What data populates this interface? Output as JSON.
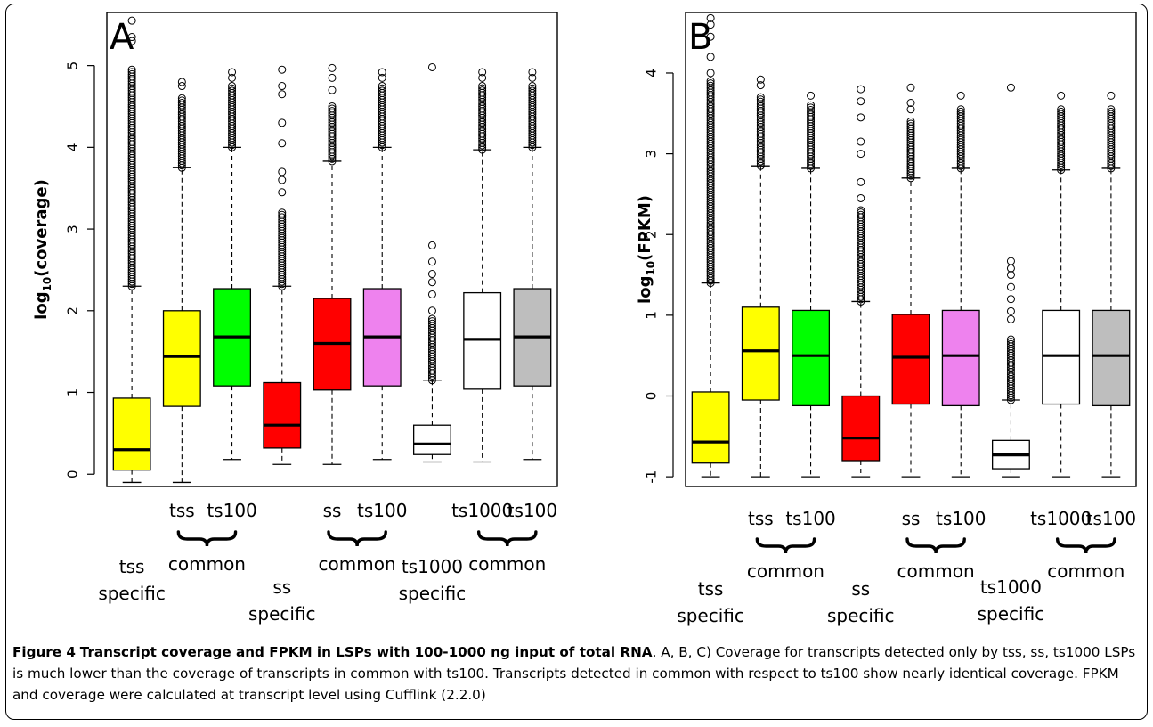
{
  "figure": {
    "caption_label": "Figure 4",
    "caption_title": "Transcript coverage and FPKM in LSPs with 100-1000 ng input of total RNA",
    "caption_sep": ". ",
    "caption_body": "A, B, C) Coverage for transcripts detected only by tss, ss, ts1000 LSPs is much lower than the coverage of transcripts in common with ts100. Transcripts detected in common with respect to ts100 show nearly identical coverage. FPKM and coverage were calculated at transcript level using Cufflink (2.2.0)"
  },
  "chart_data": [
    {
      "type": "box",
      "panel_label": "A",
      "ylabel_main": "log",
      "ylabel_sub": "10",
      "ylabel_tail": "(coverage)",
      "ylim": [
        -0.15,
        5.65
      ],
      "yticks": [
        0,
        1,
        2,
        3,
        4,
        5
      ],
      "ytick_labels": [
        "0",
        "1",
        "2",
        "3",
        "4",
        "5"
      ],
      "series": [
        {
          "color": "#ffff00",
          "whisker_low": -0.1,
          "q1": 0.05,
          "median": 0.3,
          "q3": 0.93,
          "whisker_high": 2.3,
          "outlier_range": [
            2.3,
            4.95
          ],
          "outliers": [
            5.35,
            5.3,
            5.55
          ]
        },
        {
          "color": "#ffff00",
          "whisker_low": -0.1,
          "q1": 0.83,
          "median": 1.44,
          "q3": 2.0,
          "whisker_high": 3.75,
          "outlier_range": [
            3.75,
            4.6
          ],
          "outliers": [
            4.75,
            4.8
          ]
        },
        {
          "color": "#00ff00",
          "whisker_low": 0.18,
          "q1": 1.08,
          "median": 1.68,
          "q3": 2.27,
          "whisker_high": 4.0,
          "outlier_range": [
            4.0,
            4.75
          ],
          "outliers": [
            4.85,
            4.92
          ]
        },
        {
          "color": "#ff0000",
          "whisker_low": 0.12,
          "q1": 0.32,
          "median": 0.6,
          "q3": 1.12,
          "whisker_high": 2.3,
          "outlier_range": [
            2.3,
            3.2
          ],
          "outliers": [
            3.45,
            3.6,
            3.7,
            4.05,
            4.3,
            4.65,
            4.75,
            4.95
          ]
        },
        {
          "color": "#ff0000",
          "whisker_low": 0.12,
          "q1": 1.03,
          "median": 1.6,
          "q3": 2.15,
          "whisker_high": 3.83,
          "outlier_range": [
            3.83,
            4.5
          ],
          "outliers": [
            4.7,
            4.85,
            4.97
          ]
        },
        {
          "color": "#ee82ee",
          "whisker_low": 0.18,
          "q1": 1.08,
          "median": 1.68,
          "q3": 2.27,
          "whisker_high": 4.0,
          "outlier_range": [
            4.0,
            4.75
          ],
          "outliers": [
            4.85,
            4.92
          ]
        },
        {
          "color": "#ffffff",
          "whisker_low": 0.15,
          "q1": 0.24,
          "median": 0.37,
          "q3": 0.6,
          "whisker_high": 1.15,
          "outlier_range": [
            1.15,
            1.9
          ],
          "outliers": [
            2.0,
            2.2,
            2.35,
            2.45,
            2.6,
            2.8,
            4.98
          ]
        },
        {
          "color": "#ffffff",
          "whisker_low": 0.15,
          "q1": 1.04,
          "median": 1.65,
          "q3": 2.22,
          "whisker_high": 3.97,
          "outlier_range": [
            3.97,
            4.75
          ],
          "outliers": [
            4.85,
            4.92
          ]
        },
        {
          "color": "#bebebe",
          "whisker_low": 0.18,
          "q1": 1.08,
          "median": 1.68,
          "q3": 2.27,
          "whisker_high": 4.0,
          "outlier_range": [
            4.0,
            4.75
          ],
          "outliers": [
            4.85,
            4.92
          ]
        }
      ],
      "x_labels": [
        {
          "text": "tss",
          "box": 1,
          "row": 0
        },
        {
          "text": "ts100",
          "box": 2,
          "row": 0
        },
        {
          "text": "ss",
          "box": 4,
          "row": 0
        },
        {
          "text": "ts100",
          "box": 5,
          "row": 0
        },
        {
          "text": "ts1000",
          "box": 7,
          "row": 0
        },
        {
          "text": "ts100",
          "box": 8,
          "row": 0
        }
      ],
      "groups": [
        {
          "label": "common",
          "from_box": 1,
          "to_box": 2
        },
        {
          "label": "common",
          "from_box": 4,
          "to_box": 5
        },
        {
          "label": "common",
          "from_box": 7,
          "to_box": 8
        }
      ],
      "specific_labels": [
        {
          "line1": "tss",
          "line2": "specific",
          "box": 0
        },
        {
          "line1": "ss",
          "line2": "specific",
          "box": 3
        },
        {
          "line1": "ts1000",
          "line2": "specific",
          "box": 6
        }
      ]
    },
    {
      "type": "box",
      "panel_label": "B",
      "ylabel_main": "log",
      "ylabel_sub": "10",
      "ylabel_tail": "(FPKM)",
      "ylim": [
        -1.12,
        4.75
      ],
      "yticks": [
        -1,
        0,
        1,
        2,
        3,
        4
      ],
      "ytick_labels": [
        "-1",
        "0",
        "1",
        "2",
        "3",
        "4"
      ],
      "series": [
        {
          "color": "#ffff00",
          "whisker_low": -1.0,
          "q1": -0.83,
          "median": -0.57,
          "q3": 0.05,
          "whisker_high": 1.4,
          "outlier_range": [
            1.4,
            3.9
          ],
          "outliers": [
            4.0,
            4.2,
            4.45,
            4.6,
            4.68
          ]
        },
        {
          "color": "#ffff00",
          "whisker_low": -1.0,
          "q1": -0.05,
          "median": 0.56,
          "q3": 1.1,
          "whisker_high": 2.85,
          "outlier_range": [
            2.85,
            3.7
          ],
          "outliers": [
            3.85,
            3.92
          ]
        },
        {
          "color": "#00ff00",
          "whisker_low": -1.0,
          "q1": -0.12,
          "median": 0.5,
          "q3": 1.06,
          "whisker_high": 2.82,
          "outlier_range": [
            2.82,
            3.6
          ],
          "outliers": [
            3.72
          ]
        },
        {
          "color": "#ff0000",
          "whisker_low": -1.0,
          "q1": -0.8,
          "median": -0.52,
          "q3": 0.0,
          "whisker_high": 1.17,
          "outlier_range": [
            1.17,
            2.3
          ],
          "outliers": [
            2.45,
            2.65,
            3.0,
            3.15,
            3.45,
            3.65,
            3.8
          ]
        },
        {
          "color": "#ff0000",
          "whisker_low": -1.0,
          "q1": -0.1,
          "median": 0.48,
          "q3": 1.01,
          "whisker_high": 2.7,
          "outlier_range": [
            2.7,
            3.4
          ],
          "outliers": [
            3.55,
            3.63,
            3.82
          ]
        },
        {
          "color": "#ee82ee",
          "whisker_low": -1.0,
          "q1": -0.12,
          "median": 0.5,
          "q3": 1.06,
          "whisker_high": 2.82,
          "outlier_range": [
            2.82,
            3.55
          ],
          "outliers": [
            3.72
          ]
        },
        {
          "color": "#ffffff",
          "whisker_low": -1.0,
          "q1": -0.9,
          "median": -0.73,
          "q3": -0.55,
          "whisker_high": -0.05,
          "outlier_range": [
            -0.05,
            0.7
          ],
          "outliers": [
            0.95,
            1.05,
            1.2,
            1.35,
            1.5,
            1.58,
            1.67,
            3.82
          ]
        },
        {
          "color": "#ffffff",
          "whisker_low": -1.0,
          "q1": -0.1,
          "median": 0.5,
          "q3": 1.06,
          "whisker_high": 2.8,
          "outlier_range": [
            2.8,
            3.55
          ],
          "outliers": [
            3.72
          ]
        },
        {
          "color": "#bebebe",
          "whisker_low": -1.0,
          "q1": -0.12,
          "median": 0.5,
          "q3": 1.06,
          "whisker_high": 2.82,
          "outlier_range": [
            2.82,
            3.55
          ],
          "outliers": [
            3.72
          ]
        }
      ],
      "x_labels": [
        {
          "text": "tss",
          "box": 1,
          "row": 0
        },
        {
          "text": "ts100",
          "box": 2,
          "row": 0
        },
        {
          "text": "ss",
          "box": 4,
          "row": 0
        },
        {
          "text": "ts100",
          "box": 5,
          "row": 0
        },
        {
          "text": "ts1000",
          "box": 7,
          "row": 0
        },
        {
          "text": "ts100",
          "box": 8,
          "row": 0
        }
      ],
      "groups": [
        {
          "label": "common",
          "from_box": 1,
          "to_box": 2
        },
        {
          "label": "common",
          "from_box": 4,
          "to_box": 5
        },
        {
          "label": "common",
          "from_box": 7,
          "to_box": 8
        }
      ],
      "specific_labels": [
        {
          "line1": "tss",
          "line2": "specific",
          "box": 0
        },
        {
          "line1": "ss",
          "line2": "specific",
          "box": 3
        },
        {
          "line1": "ts1000",
          "line2": "specific",
          "box": 6
        }
      ]
    }
  ]
}
